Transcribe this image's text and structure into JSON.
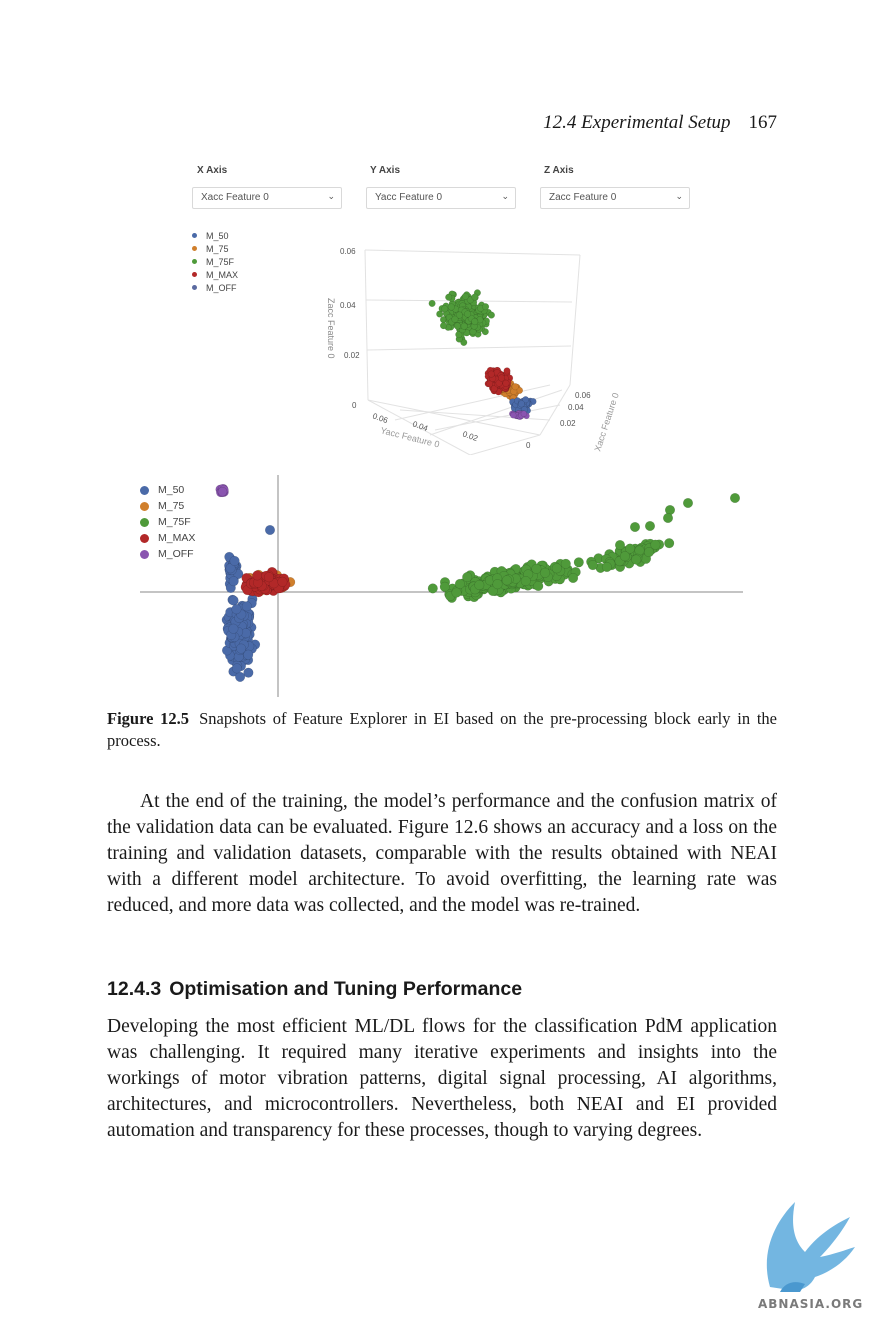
{
  "header": {
    "section": "12.4  Experimental Setup",
    "page_number": "167"
  },
  "figure": {
    "selectors": [
      {
        "label": "X Axis",
        "value": "Xacc Feature 0"
      },
      {
        "label": "Y Axis",
        "value": "Yacc Feature 0"
      },
      {
        "label": "Z Axis",
        "value": "Zacc Feature 0"
      }
    ],
    "legend_items": [
      {
        "name": "M_50",
        "color": "#4a6aa8"
      },
      {
        "name": "M_75",
        "color": "#d07f2c"
      },
      {
        "name": "M_75F",
        "color": "#4f9a3a"
      },
      {
        "name": "M_MAX",
        "color": "#b22828"
      },
      {
        "name": "M_OFF",
        "color": "#8a55b0"
      }
    ],
    "plot3d": {
      "z_ticks": [
        "0.06",
        "0.04",
        "0.02",
        "0"
      ],
      "y_ticks": [
        "0.06",
        "0.04",
        "0.02"
      ],
      "x_ticks": [
        "0.06",
        "0.04",
        "0.02",
        "0"
      ],
      "z_title": "Zacc Feature 0",
      "y_title": "Yacc Feature 0",
      "x_title": "Xacc Feature 0"
    }
  },
  "chart_data": [
    {
      "type": "scatter",
      "title": "",
      "xlabel": "Yacc Feature 0",
      "ylabel": "Zacc Feature 0",
      "zlabel": "Xacc Feature 0",
      "series": [
        {
          "name": "M_75F",
          "approx_center": {
            "y": 0.04,
            "z": 0.04,
            "x": 0.04
          }
        },
        {
          "name": "M_MAX",
          "approx_center": {
            "y": 0.02,
            "z": 0.015,
            "x": 0.03
          }
        },
        {
          "name": "M_50",
          "approx_center": {
            "y": 0.015,
            "z": 0.005,
            "x": 0.02
          }
        },
        {
          "name": "M_75",
          "approx_center": {
            "y": 0.018,
            "z": 0.01,
            "x": 0.025
          }
        },
        {
          "name": "M_OFF",
          "approx_center": {
            "y": 0.01,
            "z": 0.002,
            "x": 0.01
          }
        }
      ]
    },
    {
      "type": "scatter",
      "title": "",
      "series": [
        {
          "name": "M_50",
          "x_range": [
            -0.5,
            0.3
          ],
          "y_range": [
            -1.1,
            0.3
          ]
        },
        {
          "name": "M_75",
          "x_range": [
            -0.4,
            0.2
          ],
          "y_range": [
            -0.1,
            0.3
          ]
        },
        {
          "name": "M_75F",
          "x_range": [
            1.2,
            4.5
          ],
          "y_range": [
            -0.2,
            0.7
          ]
        },
        {
          "name": "M_MAX",
          "x_range": [
            -0.3,
            0.2
          ],
          "y_range": [
            -0.1,
            0.3
          ]
        },
        {
          "name": "M_OFF",
          "x_range": [
            -0.6,
            -0.4
          ],
          "y_range": [
            0.9,
            1.1
          ]
        }
      ]
    }
  ],
  "caption": {
    "label": "Figure 12.5",
    "text": "Snapshots of Feature Explorer in EI based on the pre-processing block early in the process."
  },
  "body": {
    "para1": "At the end of the training, the model’s performance and the confusion matrix of the validation data can be evaluated. Figure 12.6 shows an accuracy and a loss on the training and validation datasets, comparable with the results obtained with NEAI with a different model architecture. To avoid overfitting, the learning rate was reduced, and more data was collected, and the model was re-trained.",
    "subsection_number": "12.4.3",
    "subsection_title": "Optimisation and Tuning Performance",
    "para2": "Developing the most efficient ML/DL flows for the classification PdM application was challenging. It required many iterative experiments and insights into the workings of motor vibration patterns, digital signal processing, AI algorithms, architectures, and microcontrollers. Nevertheless, both NEAI and EI provided automation and transparency for these processes, though to varying degrees."
  },
  "watermark": {
    "text": "ABNASIA.ORG"
  }
}
